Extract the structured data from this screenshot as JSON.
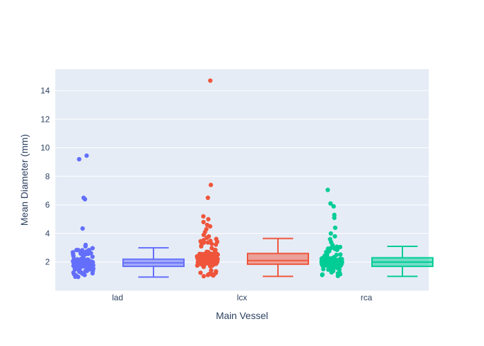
{
  "chart_data": {
    "type": "box",
    "xlabel": "Main Vessel",
    "ylabel": "Mean Diameter (mm)",
    "categories": [
      "lad",
      "lcx",
      "rca"
    ],
    "ylim": [
      0,
      15.5
    ],
    "yticks": [
      2,
      4,
      6,
      8,
      10,
      12,
      14
    ],
    "grid": true,
    "series": [
      {
        "category": "lad",
        "color": "#636efa",
        "box": {
          "min": 0.95,
          "q1": 1.7,
          "median": 1.95,
          "q3": 2.2,
          "max": 3.0
        },
        "outliers": [
          3.1,
          3.2,
          4.35,
          6.4,
          6.5,
          9.2,
          9.45
        ]
      },
      {
        "category": "lcx",
        "color": "#ef553b",
        "box": {
          "min": 1.0,
          "q1": 1.85,
          "median": 2.1,
          "q3": 2.6,
          "max": 3.65
        },
        "outliers": [
          3.7,
          3.8,
          3.9,
          4.1,
          4.3,
          4.5,
          4.6,
          4.8,
          5.0,
          5.2,
          6.5,
          7.4,
          14.7
        ]
      },
      {
        "category": "rca",
        "color": "#00cc96",
        "box": {
          "min": 1.0,
          "q1": 1.7,
          "median": 2.0,
          "q3": 2.3,
          "max": 3.1
        },
        "outliers": [
          3.2,
          3.4,
          3.6,
          3.8,
          4.0,
          4.4,
          5.1,
          5.3,
          5.9,
          6.1,
          7.05
        ]
      }
    ]
  }
}
